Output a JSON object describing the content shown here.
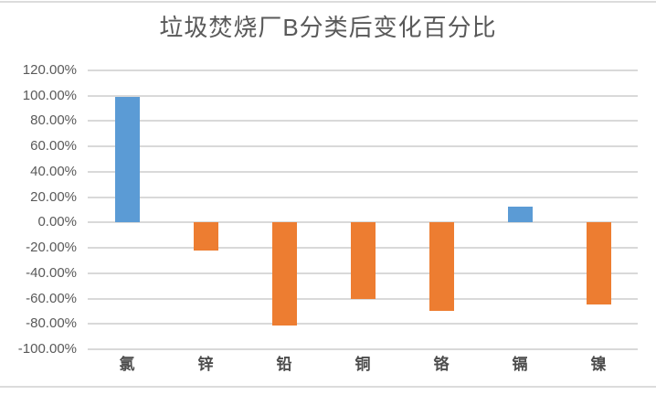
{
  "chart_data": {
    "type": "bar",
    "title": "垃圾焚烧厂B分类后变化百分比",
    "xlabel": "",
    "ylabel": "",
    "categories": [
      "氯",
      "锌",
      "铅",
      "铜",
      "铬",
      "镉",
      "镍"
    ],
    "values": [
      99.3,
      -22.4,
      -81.3,
      -60.4,
      -69.8,
      12.5,
      -64.5
    ],
    "bar_colors": [
      "#5B9BD5",
      "#ED7D31",
      "#ED7D31",
      "#ED7D31",
      "#ED7D31",
      "#5B9BD5",
      "#ED7D31"
    ],
    "ylim": [
      -100,
      120
    ],
    "y_tick_step": 20,
    "y_ticks": [
      {
        "label": "120.00%",
        "value": 120
      },
      {
        "label": "100.00%",
        "value": 100
      },
      {
        "label": "80.00%",
        "value": 80
      },
      {
        "label": "60.00%",
        "value": 60
      },
      {
        "label": "40.00%",
        "value": 40
      },
      {
        "label": "20.00%",
        "value": 20
      },
      {
        "label": "0.00%",
        "value": 0
      },
      {
        "label": "-20.00%",
        "value": -20
      },
      {
        "label": "-40.00%",
        "value": -40
      },
      {
        "label": "-60.00%",
        "value": -60
      },
      {
        "label": "-80.00%",
        "value": -80
      },
      {
        "label": "-100.00%",
        "value": -100
      }
    ],
    "grid": true,
    "legend": false,
    "colors": {
      "positive_bar": "#5B9BD5",
      "negative_bar": "#ED7D31",
      "gridline": "#D9D9D9",
      "text": "#595959",
      "frame_border": "#DCDCDC",
      "background": "#FFFFFF"
    }
  }
}
